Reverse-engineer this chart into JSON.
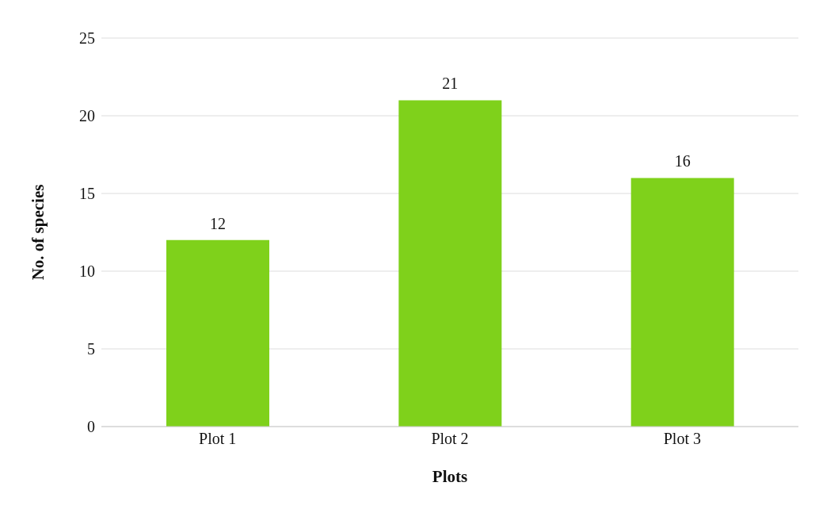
{
  "chart_data": {
    "type": "bar",
    "xlabel": "Plots",
    "ylabel": "No. of species",
    "categories": [
      "Plot 1",
      "Plot 2",
      "Plot 3"
    ],
    "values": [
      12,
      21,
      16
    ],
    "color": "#7fd11b",
    "ylim": [
      0,
      25
    ],
    "yticks": [
      0,
      5,
      10,
      15,
      20,
      25
    ],
    "grid": "y",
    "data_labels": true
  }
}
